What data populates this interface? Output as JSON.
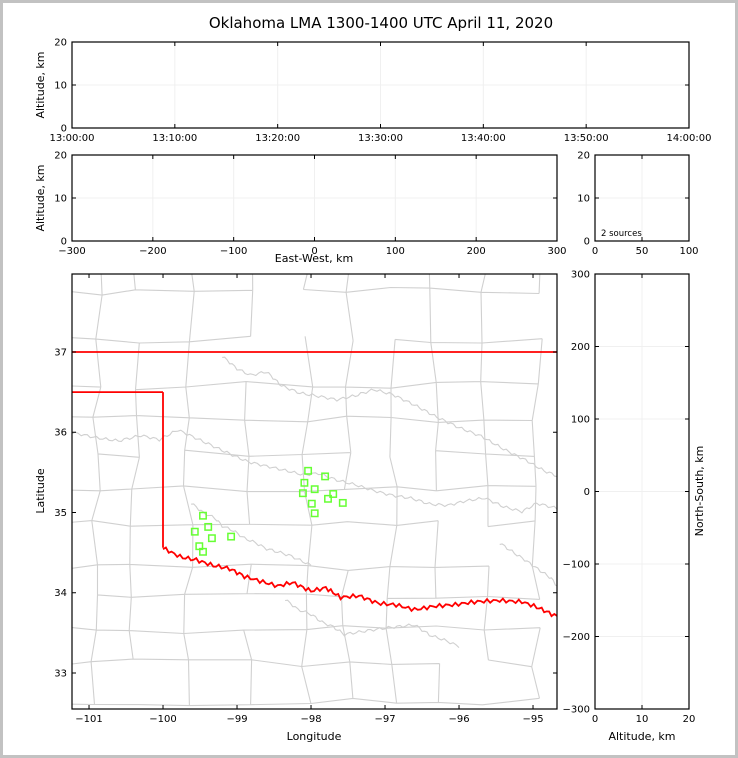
{
  "title": "Oklahoma LMA 1300-1400 UTC April 11, 2020",
  "colors": {
    "axis": "#000000",
    "grid": "#f0f0f0",
    "county": "#d0d0d0",
    "state_border": "#ff0000",
    "marker": "#66ff33",
    "window_frame": "#c2c2c2",
    "background": "#ffffff"
  },
  "chart_data": [
    {
      "id": "time_height",
      "type": "scatter",
      "xlabel": "",
      "ylabel": "Altitude, km",
      "xlim": [
        0,
        3600
      ],
      "ylim": [
        0,
        20
      ],
      "xticks": {
        "values": [
          0,
          600,
          1200,
          1800,
          2400,
          3000,
          3600
        ],
        "labels": [
          "13:00:00",
          "13:10:00",
          "13:20:00",
          "13:30:00",
          "13:40:00",
          "13:50:00",
          "14:00:00"
        ]
      },
      "yticks": {
        "values": [
          0,
          10,
          20
        ],
        "labels": [
          "0",
          "10",
          "20"
        ]
      },
      "grid": true,
      "points": []
    },
    {
      "id": "ew_height",
      "type": "scatter",
      "xlabel": "East-West, km",
      "ylabel": "Altitude, km",
      "xlim": [
        -300,
        300
      ],
      "ylim": [
        0,
        20
      ],
      "xticks": {
        "values": [
          -300,
          -200,
          -100,
          0,
          100,
          200,
          300
        ],
        "labels": [
          "−300",
          "−200",
          "−100",
          "0",
          "100",
          "200",
          "300"
        ]
      },
      "yticks": {
        "values": [
          0,
          10,
          20
        ],
        "labels": [
          "0",
          "10",
          "20"
        ]
      },
      "grid": true,
      "points": []
    },
    {
      "id": "alt_histogram",
      "type": "line",
      "annotation": "2 sources",
      "xlabel": "",
      "ylabel": "",
      "xlim": [
        0,
        100
      ],
      "ylim": [
        0,
        20
      ],
      "xticks": {
        "values": [
          0,
          50,
          100
        ],
        "labels": [
          "0",
          "50",
          "100"
        ]
      },
      "yticks": {
        "values": [
          0,
          10,
          20
        ],
        "labels": [
          "0",
          "10",
          "20"
        ]
      },
      "grid": true,
      "points": []
    },
    {
      "id": "plan_view_map",
      "type": "scatter",
      "xlabel": "Longitude",
      "ylabel": "Latitude",
      "xlim": [
        -101.23,
        -94.676
      ],
      "ylim": [
        32.551,
        37.972
      ],
      "xticks": {
        "values": [
          -101,
          -100,
          -99,
          -98,
          -97,
          -96,
          -95
        ],
        "labels": [
          "−101",
          "−100",
          "−99",
          "−98",
          "−97",
          "−96",
          "−95"
        ]
      },
      "yticks": {
        "values": [
          33,
          34,
          35,
          36,
          37
        ],
        "labels": [
          "33",
          "34",
          "35",
          "36",
          "37"
        ]
      },
      "grid": false,
      "marker": "open-square",
      "state_border": {
        "north_lat": 37.0,
        "panhandle_south_lat": 36.5,
        "west_lon": -100.0,
        "red_river_start_lat": 34.56
      },
      "points": [
        [
          -98.04,
          35.52
        ],
        [
          -97.81,
          35.45
        ],
        [
          -98.09,
          35.37
        ],
        [
          -97.95,
          35.29
        ],
        [
          -98.11,
          35.24
        ],
        [
          -97.7,
          35.23
        ],
        [
          -97.77,
          35.17
        ],
        [
          -97.57,
          35.12
        ],
        [
          -97.99,
          35.11
        ],
        [
          -97.95,
          34.99
        ],
        [
          -99.46,
          34.96
        ],
        [
          -99.39,
          34.82
        ],
        [
          -99.57,
          34.76
        ],
        [
          -99.34,
          34.68
        ],
        [
          -99.08,
          34.7
        ],
        [
          -99.51,
          34.58
        ],
        [
          -99.46,
          34.51
        ]
      ]
    },
    {
      "id": "ns_height",
      "type": "scatter",
      "xlabel": "Altitude, km",
      "ylabel_right": "North-South, km",
      "xlim": [
        0,
        20
      ],
      "ylim": [
        -300,
        300
      ],
      "xticks": {
        "values": [
          0,
          10,
          20
        ],
        "labels": [
          "0",
          "10",
          "20"
        ]
      },
      "yticks": {
        "values": [
          -300,
          -200,
          -100,
          0,
          100,
          200,
          300
        ],
        "labels": [
          "−300",
          "−200",
          "−100",
          "0",
          "100",
          "200",
          "300"
        ]
      },
      "grid": true,
      "points": []
    }
  ]
}
